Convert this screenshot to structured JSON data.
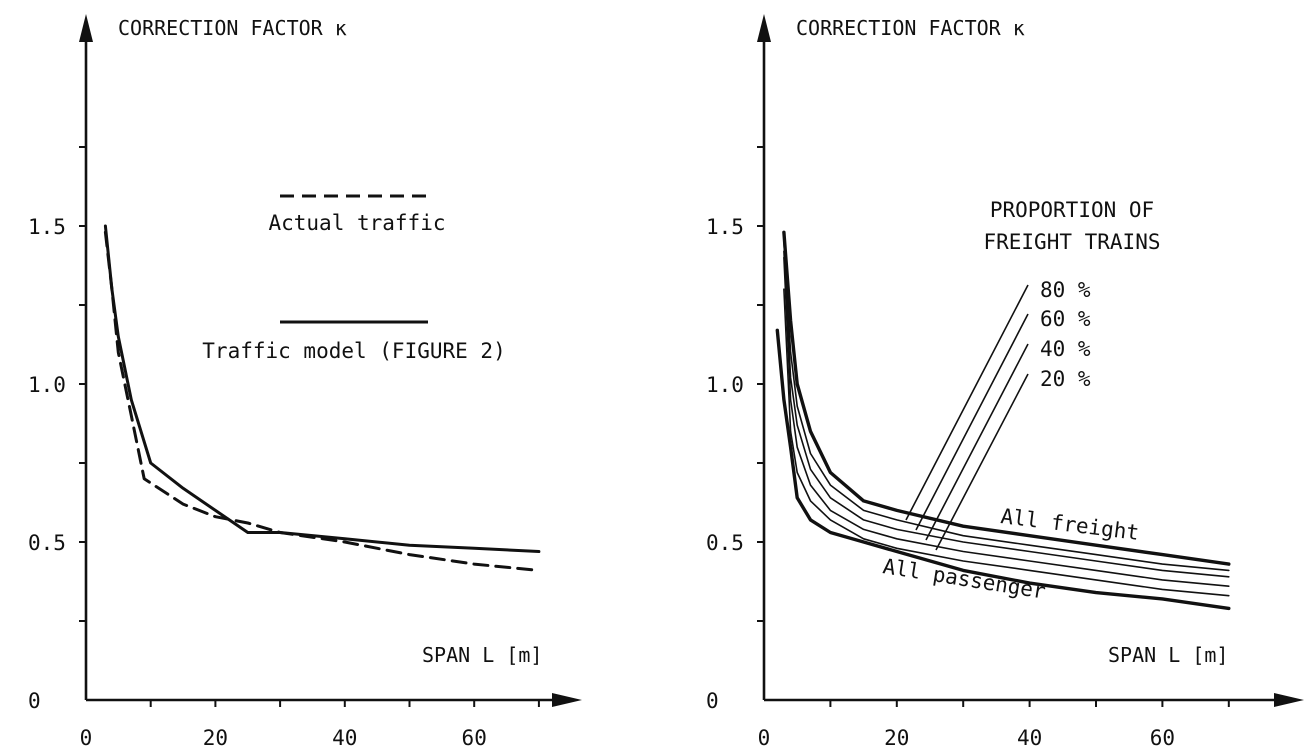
{
  "chart_data": [
    {
      "type": "line",
      "title": "",
      "ylabel": "CORRECTION FACTOR  κ",
      "xlabel": "SPAN  L  [m]",
      "xlim": [
        0,
        75
      ],
      "ylim": [
        0,
        2.0
      ],
      "x_ticks": [
        0,
        20,
        40,
        60
      ],
      "x_tick_labels": [
        "0",
        "20",
        "40",
        "60"
      ],
      "y_ticks": [
        0,
        0.5,
        1.0,
        1.5
      ],
      "y_tick_labels": [
        "0",
        "0.5",
        "1.0",
        "1.5"
      ],
      "grid": false,
      "legend_position": "center",
      "series": [
        {
          "name": "Actual traffic",
          "style": "dashed",
          "x": [
            3,
            4,
            5,
            7,
            9,
            15,
            20,
            25,
            30,
            40,
            50,
            60,
            70
          ],
          "y": [
            1.48,
            1.3,
            1.1,
            0.9,
            0.7,
            0.62,
            0.58,
            0.56,
            0.53,
            0.5,
            0.46,
            0.43,
            0.41
          ]
        },
        {
          "name": "Traffic model (FIGURE 2)",
          "style": "solid",
          "x": [
            3,
            4,
            5,
            7,
            10,
            15,
            20,
            25,
            30,
            40,
            50,
            60,
            70
          ],
          "y": [
            1.5,
            1.3,
            1.15,
            0.95,
            0.75,
            0.67,
            0.6,
            0.53,
            0.53,
            0.51,
            0.49,
            0.48,
            0.47
          ]
        }
      ]
    },
    {
      "type": "line",
      "title": "",
      "ylabel": "CORRECTION FACTOR  κ",
      "xlabel": "SPAN  L  [m]",
      "xlim": [
        0,
        75
      ],
      "ylim": [
        0,
        2.0
      ],
      "x_ticks": [
        0,
        20,
        40,
        60
      ],
      "x_tick_labels": [
        "0",
        "20",
        "40",
        "60"
      ],
      "y_ticks": [
        0,
        0.5,
        1.0,
        1.5
      ],
      "y_tick_labels": [
        "0",
        "0.5",
        "1.0",
        "1.5"
      ],
      "grid": false,
      "legend_title": "PROPORTION OF\nFREIGHT TRAINS",
      "legend_title_lines": [
        "PROPORTION OF",
        "FREIGHT TRAINS"
      ],
      "legend_position": "top-right",
      "series": [
        {
          "name": "All freight",
          "x": [
            3,
            4,
            5,
            7,
            10,
            15,
            20,
            30,
            40,
            50,
            60,
            70
          ],
          "y": [
            1.48,
            1.2,
            1.0,
            0.85,
            0.72,
            0.63,
            0.6,
            0.55,
            0.52,
            0.49,
            0.46,
            0.43
          ]
        },
        {
          "name": "80 %",
          "x": [
            3,
            4,
            5,
            7,
            10,
            15,
            20,
            30,
            40,
            50,
            60,
            70
          ],
          "y": [
            1.45,
            1.1,
            0.93,
            0.78,
            0.68,
            0.6,
            0.57,
            0.52,
            0.49,
            0.46,
            0.43,
            0.41
          ]
        },
        {
          "name": "60 %",
          "x": [
            3,
            4,
            5,
            7,
            10,
            15,
            20,
            30,
            40,
            50,
            60,
            70
          ],
          "y": [
            1.42,
            1.02,
            0.87,
            0.73,
            0.64,
            0.57,
            0.54,
            0.5,
            0.47,
            0.44,
            0.41,
            0.39
          ]
        },
        {
          "name": "40 %",
          "x": [
            3,
            4,
            5,
            7,
            10,
            15,
            20,
            30,
            40,
            50,
            60,
            70
          ],
          "y": [
            1.4,
            0.95,
            0.8,
            0.68,
            0.6,
            0.54,
            0.51,
            0.47,
            0.44,
            0.41,
            0.38,
            0.36
          ]
        },
        {
          "name": "20 %",
          "x": [
            3,
            4,
            5,
            7,
            10,
            15,
            20,
            30,
            40,
            50,
            60,
            70
          ],
          "y": [
            1.3,
            0.85,
            0.72,
            0.63,
            0.57,
            0.51,
            0.48,
            0.44,
            0.41,
            0.38,
            0.35,
            0.33
          ]
        },
        {
          "name": "All passenger",
          "x": [
            2,
            3,
            4,
            5,
            7,
            10,
            15,
            20,
            30,
            40,
            50,
            60,
            70
          ],
          "y": [
            1.17,
            0.95,
            0.8,
            0.64,
            0.57,
            0.53,
            0.5,
            0.47,
            0.41,
            0.37,
            0.34,
            0.32,
            0.29
          ]
        }
      ]
    }
  ]
}
